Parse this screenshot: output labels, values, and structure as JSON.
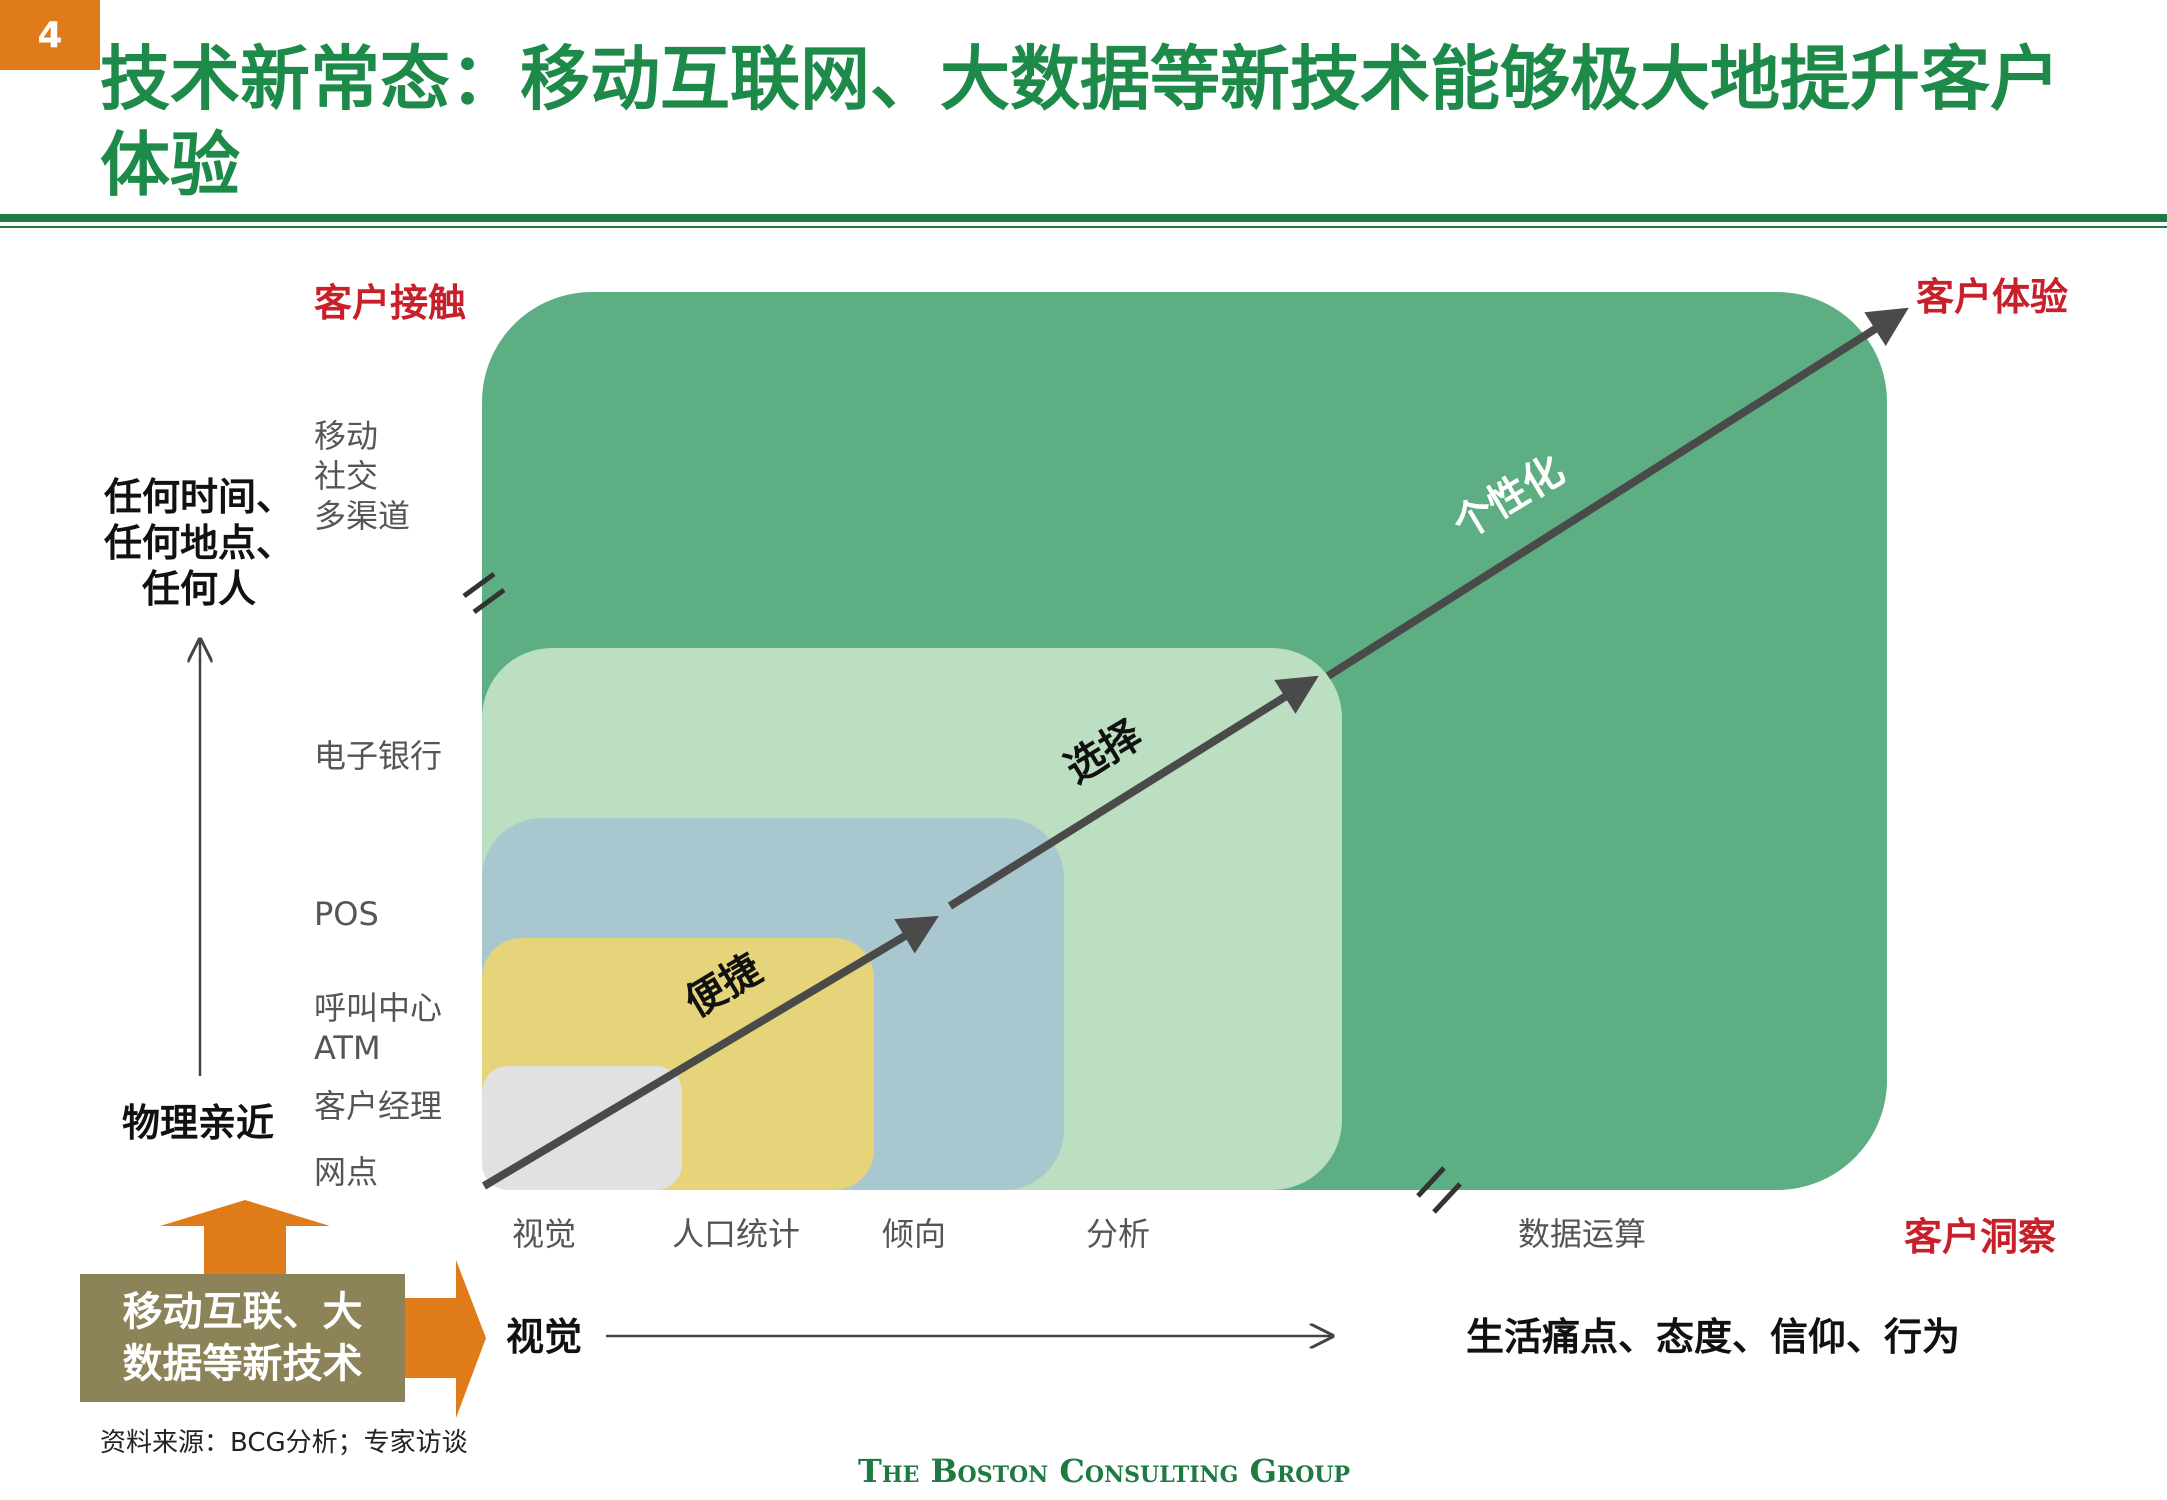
{
  "page_number": "4",
  "title": "技术新常态：移动互联网、大数据等新技术能够极大地提升客户体验",
  "y_axis": {
    "top_label": "客户接触",
    "bottom_label": "物理亲近",
    "left_label_lines": [
      "任何时间、",
      "任何地点、",
      "任何人"
    ],
    "items": {
      "mobile": [
        "移动",
        "社交",
        "多渠道"
      ],
      "ebank": "电子银行",
      "pos": "POS",
      "callcenter": [
        "呼叫中心",
        "ATM"
      ],
      "manager": "客户经理",
      "branch": "网点"
    }
  },
  "x_axis": {
    "right_label": "客户洞察",
    "corner_label": "客户体验",
    "ticks": [
      "视觉",
      "人口统计",
      "倾向",
      "分析",
      "数据运算"
    ]
  },
  "diagonal_labels": {
    "convenience": "便捷",
    "choice": "选择",
    "personalization": "个性化"
  },
  "bottom_row": {
    "start": "视觉",
    "end": "生活痛点、态度、信仰、行为"
  },
  "tech_box_lines": [
    "移动互联、大",
    "数据等新技术"
  ],
  "source": "资料来源：BCG分析；专家访谈",
  "logo": "The Boston Consulting Group",
  "colors": {
    "green_dark": "#5daf83",
    "green_light": "#bcdfc2",
    "blue": "#a9c7cf",
    "yellow": "#e6d47a",
    "grey": "#e1e1e1",
    "orange": "#e07b1a",
    "olive": "#8c8358",
    "title_green": "#1e8a4a",
    "red": "#c8202a"
  }
}
